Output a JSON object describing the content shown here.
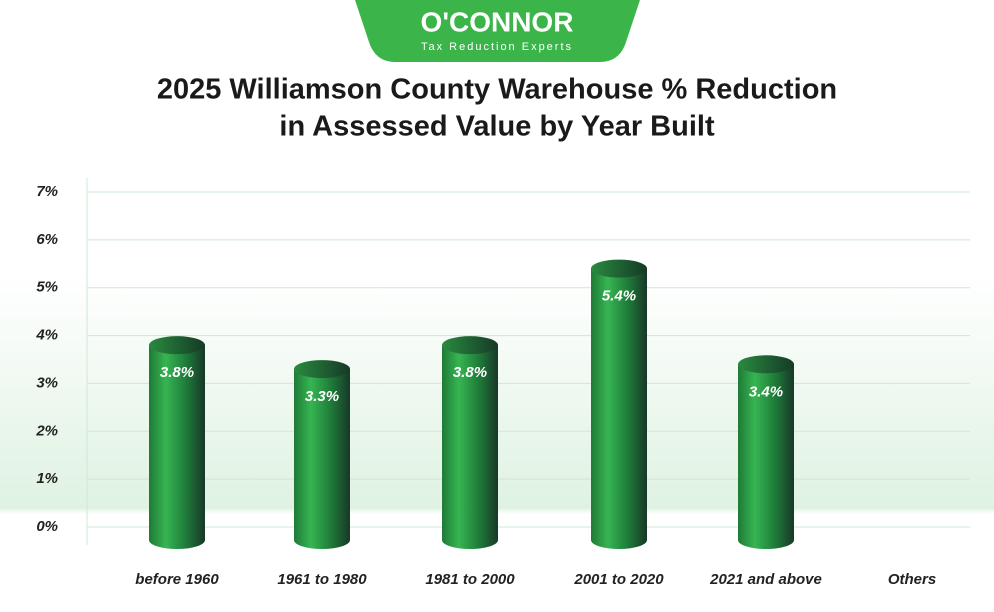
{
  "logo": {
    "name": "O'CONNOR",
    "tagline": "Tax Reduction Experts"
  },
  "chart_data": {
    "type": "bar",
    "title": [
      "2025 Williamson County Warehouse % Reduction",
      "in Assessed Value by Year Built"
    ],
    "categories": [
      "before 1960",
      "1961 to 1980",
      "1981 to 2000",
      "2001 to 2020",
      "2021 and above",
      "Others"
    ],
    "values": [
      3.8,
      3.3,
      3.8,
      5.4,
      3.4,
      null
    ],
    "value_labels": [
      "3.8%",
      "3.3%",
      "3.8%",
      "5.4%",
      "3.4%",
      null
    ],
    "color": "#2ea84a",
    "ylim": [
      0,
      7
    ],
    "yticks": [
      {
        "value": 0,
        "label": "0%"
      },
      {
        "value": 1,
        "label": "1%"
      },
      {
        "value": 2,
        "label": "2%"
      },
      {
        "value": 3,
        "label": "3%"
      },
      {
        "value": 4,
        "label": "4%"
      },
      {
        "value": 5,
        "label": "5%"
      },
      {
        "value": 6,
        "label": "6%"
      },
      {
        "value": 7,
        "label": "7%"
      }
    ],
    "grid": true
  }
}
